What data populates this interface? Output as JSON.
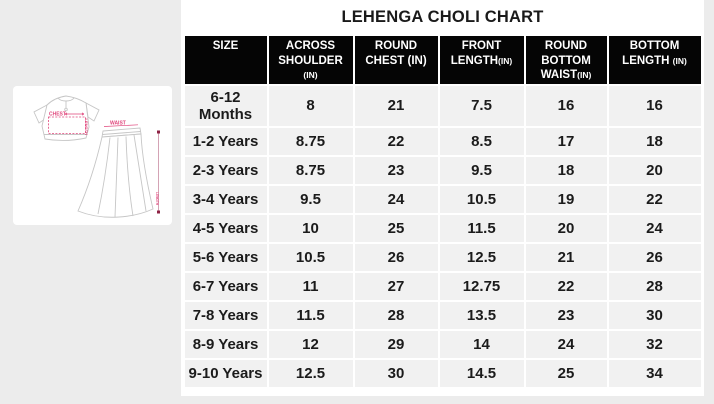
{
  "title": "LEHENGA CHOLI CHART",
  "illustration": {
    "chest_label": "CHEST",
    "top_length_label": "LENGTH",
    "waist_label": "WAIST",
    "skirt_length_label": "LENGTH"
  },
  "colors": {
    "page_bg": "#ececec",
    "panel_bg": "#ffffff",
    "header_bg": "#050505",
    "header_text": "#ffffff",
    "cell_bg": "#f1f1f1",
    "cell_text": "#1b1b1b",
    "annotation_pink": "#e0457b",
    "annotation_maroon": "#8e2344",
    "sketch_stroke": "#c6c6c6"
  },
  "table": {
    "columns": [
      {
        "id": "size",
        "lines": [
          [
            {
              "t": "SIZE"
            }
          ]
        ]
      },
      {
        "id": "across-shoulder",
        "lines": [
          [
            {
              "t": "ACROSS"
            }
          ],
          [
            {
              "t": "SHOULDER"
            }
          ],
          [
            {
              "t": "(IN)",
              "small": true
            }
          ]
        ]
      },
      {
        "id": "round-chest",
        "lines": [
          [
            {
              "t": "ROUND"
            }
          ],
          [
            {
              "t": "CHEST (IN)"
            }
          ]
        ]
      },
      {
        "id": "front-length",
        "lines": [
          [
            {
              "t": "FRONT"
            }
          ],
          [
            {
              "t": "LENGTH"
            },
            {
              "t": "(IN)",
              "small": true
            }
          ]
        ]
      },
      {
        "id": "round-bottom-waist",
        "lines": [
          [
            {
              "t": "ROUND"
            }
          ],
          [
            {
              "t": "BOTTOM"
            }
          ],
          [
            {
              "t": "WAIST"
            },
            {
              "t": "(IN)",
              "small": true
            }
          ]
        ]
      },
      {
        "id": "bottom-length",
        "lines": [
          [
            {
              "t": "BOTTOM"
            }
          ],
          [
            {
              "t": "LENGTH "
            },
            {
              "t": "(IN)",
              "small": true
            }
          ]
        ]
      }
    ],
    "rows": [
      {
        "size": "6-12 Months",
        "values": [
          "8",
          "21",
          "7.5",
          "16",
          "16"
        ]
      },
      {
        "size": "1-2 Years",
        "values": [
          "8.75",
          "22",
          "8.5",
          "17",
          "18"
        ]
      },
      {
        "size": "2-3 Years",
        "values": [
          "8.75",
          "23",
          "9.5",
          "18",
          "20"
        ]
      },
      {
        "size": "3-4 Years",
        "values": [
          "9.5",
          "24",
          "10.5",
          "19",
          "22"
        ]
      },
      {
        "size": "4-5 Years",
        "values": [
          "10",
          "25",
          "11.5",
          "20",
          "24"
        ]
      },
      {
        "size": "5-6 Years",
        "values": [
          "10.5",
          "26",
          "12.5",
          "21",
          "26"
        ]
      },
      {
        "size": "6-7 Years",
        "values": [
          "11",
          "27",
          "12.75",
          "22",
          "28"
        ]
      },
      {
        "size": "7-8 Years",
        "values": [
          "11.5",
          "28",
          "13.5",
          "23",
          "30"
        ]
      },
      {
        "size": "8-9 Years",
        "values": [
          "12",
          "29",
          "14",
          "24",
          "32"
        ]
      },
      {
        "size": "9-10 Years",
        "values": [
          "12.5",
          "30",
          "14.5",
          "25",
          "34"
        ]
      }
    ]
  },
  "chart_data": {
    "type": "table",
    "title": "LEHENGA CHOLI CHART",
    "columns": [
      "SIZE",
      "ACROSS SHOULDER (IN)",
      "ROUND CHEST (IN)",
      "FRONT LENGTH (IN)",
      "ROUND BOTTOM WAIST (IN)",
      "BOTTOM LENGTH (IN)"
    ],
    "rows": [
      [
        "6-12 Months",
        8,
        21,
        7.5,
        16,
        16
      ],
      [
        "1-2 Years",
        8.75,
        22,
        8.5,
        17,
        18
      ],
      [
        "2-3 Years",
        8.75,
        23,
        9.5,
        18,
        20
      ],
      [
        "3-4 Years",
        9.5,
        24,
        10.5,
        19,
        22
      ],
      [
        "4-5 Years",
        10,
        25,
        11.5,
        20,
        24
      ],
      [
        "5-6 Years",
        10.5,
        26,
        12.5,
        21,
        26
      ],
      [
        "6-7 Years",
        11,
        27,
        12.75,
        22,
        28
      ],
      [
        "7-8 Years",
        11.5,
        28,
        13.5,
        23,
        30
      ],
      [
        "8-9 Years",
        12,
        29,
        14,
        24,
        32
      ],
      [
        "9-10 Years",
        12.5,
        30,
        14.5,
        25,
        34
      ]
    ]
  }
}
